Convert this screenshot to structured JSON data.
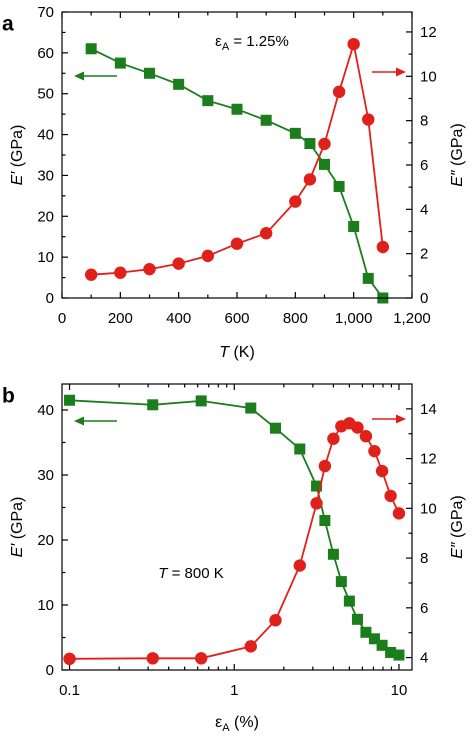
{
  "chart_data": [
    {
      "type": "line",
      "panel_label": "a",
      "annotation": "εA = 1.25%",
      "x_axis": {
        "label_italic": "T",
        "label_rest": " (K)",
        "scale": "linear",
        "lim": [
          0,
          1200
        ],
        "ticks": [
          0,
          200,
          400,
          600,
          800,
          1000,
          1200
        ],
        "tick_labels": [
          "0",
          "200",
          "400",
          "600",
          "800",
          "1,000",
          "1,200"
        ]
      },
      "left_axis": {
        "label_italic": "E′",
        "label_rest": " (GPa)",
        "lim": [
          0,
          70
        ],
        "ticks": [
          0,
          10,
          20,
          30,
          40,
          50,
          60,
          70
        ],
        "tick_labels": [
          "0",
          "10",
          "20",
          "30",
          "40",
          "50",
          "60",
          "70"
        ]
      },
      "right_axis": {
        "label_italic": "E″",
        "label_rest": " (GPa)",
        "lim": [
          0,
          12.9
        ],
        "ticks": [
          0,
          2,
          4,
          6,
          8,
          10,
          12
        ],
        "tick_labels": [
          "0",
          "2",
          "4",
          "6",
          "8",
          "10",
          "12"
        ]
      },
      "series": [
        {
          "axis": "left",
          "marker": "square",
          "color": "#1b7d1b",
          "x": [
            100,
            200,
            300,
            400,
            500,
            600,
            700,
            800,
            850,
            900,
            950,
            1000,
            1050,
            1100
          ],
          "y": [
            61,
            57.5,
            55,
            52.3,
            48.3,
            46.2,
            43.5,
            40.3,
            37.8,
            32.7,
            27.3,
            17.5,
            4.8,
            0
          ]
        },
        {
          "axis": "right",
          "marker": "circle",
          "color": "#e0201a",
          "x": [
            100,
            200,
            300,
            400,
            500,
            600,
            700,
            800,
            850,
            900,
            950,
            1000,
            1050,
            1100
          ],
          "y": [
            1.05,
            1.14,
            1.3,
            1.55,
            1.9,
            2.45,
            2.92,
            4.35,
            5.35,
            6.95,
            9.3,
            11.45,
            8.05,
            2.3
          ]
        }
      ],
      "arrows": [
        {
          "direction": "left",
          "color": "#1b7d1b"
        },
        {
          "direction": "right",
          "color": "#e0201a"
        }
      ]
    },
    {
      "type": "line",
      "panel_label": "b",
      "annotation_italic": "T",
      "annotation_rest": " = 800 K",
      "x_axis": {
        "label_italic": "εA",
        "label_rest": " (%)",
        "scale": "log",
        "lim": [
          0.09,
          12
        ],
        "ticks": [
          0.1,
          1,
          10
        ],
        "tick_labels": [
          "0.1",
          "1",
          "10"
        ]
      },
      "left_axis": {
        "label_italic": "E′",
        "label_rest": " (GPa)",
        "lim": [
          0,
          44
        ],
        "ticks": [
          0,
          10,
          20,
          30,
          40
        ],
        "tick_labels": [
          "0",
          "10",
          "20",
          "30",
          "40"
        ]
      },
      "right_axis": {
        "label_italic": "E″",
        "label_rest": " (GPa)",
        "lim": [
          3.5,
          15
        ],
        "ticks": [
          4,
          6,
          8,
          10,
          12,
          14
        ],
        "tick_labels": [
          "4",
          "6",
          "8",
          "10",
          "12",
          "14"
        ]
      },
      "series": [
        {
          "axis": "left",
          "marker": "square",
          "color": "#1b7d1b",
          "x": [
            0.1,
            0.32,
            0.63,
            1.26,
            1.78,
            2.5,
            3.16,
            3.55,
            4.0,
            4.47,
            5.0,
            5.6,
            6.3,
            7.1,
            7.9,
            8.9,
            10.0
          ],
          "y": [
            41.5,
            40.8,
            41.4,
            40.3,
            37.2,
            34.0,
            28.3,
            23.0,
            17.8,
            13.6,
            10.6,
            7.8,
            5.8,
            4.8,
            3.8,
            2.7,
            2.3
          ]
        },
        {
          "axis": "right",
          "marker": "circle",
          "color": "#e0201a",
          "x": [
            0.1,
            0.32,
            0.63,
            1.26,
            1.78,
            2.5,
            3.16,
            3.55,
            4.0,
            4.47,
            5.0,
            5.6,
            6.3,
            7.1,
            7.9,
            8.9,
            10.0
          ],
          "y": [
            3.95,
            3.97,
            3.97,
            4.45,
            5.5,
            7.7,
            10.2,
            11.7,
            12.8,
            13.3,
            13.42,
            13.25,
            12.9,
            12.3,
            11.5,
            10.5,
            9.8
          ]
        }
      ],
      "arrows": [
        {
          "direction": "left",
          "color": "#1b7d1b"
        },
        {
          "direction": "right",
          "color": "#e0201a"
        }
      ]
    }
  ]
}
